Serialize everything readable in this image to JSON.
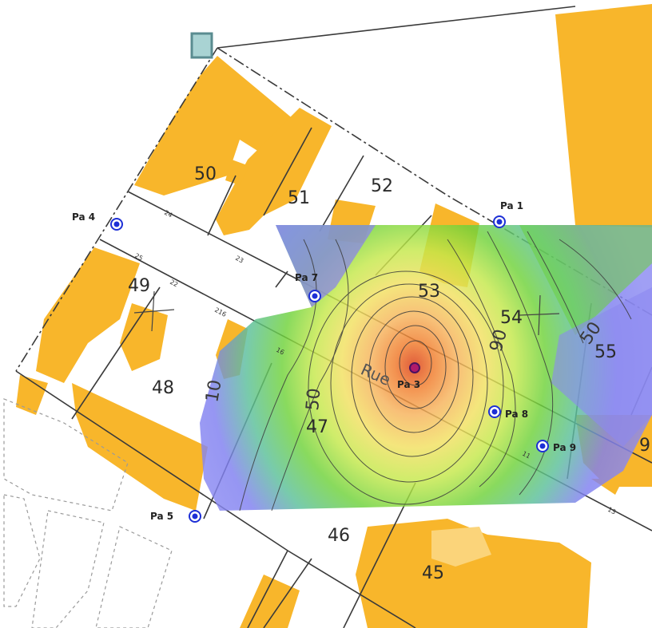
{
  "map": {
    "plots": [
      {
        "id": "50",
        "label": "50"
      },
      {
        "id": "51",
        "label": "51"
      },
      {
        "id": "52",
        "label": "52"
      },
      {
        "id": "49",
        "label": "49"
      },
      {
        "id": "48",
        "label": "48"
      },
      {
        "id": "47",
        "label": "47"
      },
      {
        "id": "46",
        "label": "46"
      },
      {
        "id": "45",
        "label": "45"
      },
      {
        "id": "53",
        "label": "53"
      },
      {
        "id": "54",
        "label": "54"
      },
      {
        "id": "55",
        "label": "55"
      },
      {
        "id": "9x",
        "label": "9"
      }
    ],
    "wells": [
      {
        "id": "pa1",
        "label": "Pa 1"
      },
      {
        "id": "pa4",
        "label": "Pa 4"
      },
      {
        "id": "pa7",
        "label": "Pa 7"
      },
      {
        "id": "pa3",
        "label": "Pa 3"
      },
      {
        "id": "pa8",
        "label": "Pa 8"
      },
      {
        "id": "pa9",
        "label": "Pa 9"
      },
      {
        "id": "pa5",
        "label": "Pa 5"
      }
    ],
    "contour_labels": [
      "10",
      "50",
      "90",
      "50"
    ],
    "street_label": "Rue",
    "street_numbers": [
      "24",
      "22",
      "23",
      "25",
      "216",
      "16",
      "11",
      "13"
    ],
    "colors": {
      "building": "#f8b62b",
      "building_light": "#fbd47a",
      "plume_low": "#7b78f0",
      "plume_mid": "#7cd13a",
      "plume_high": "#f7e23a",
      "plume_peak": "#e8561a",
      "well": "#1d2fd6"
    }
  }
}
